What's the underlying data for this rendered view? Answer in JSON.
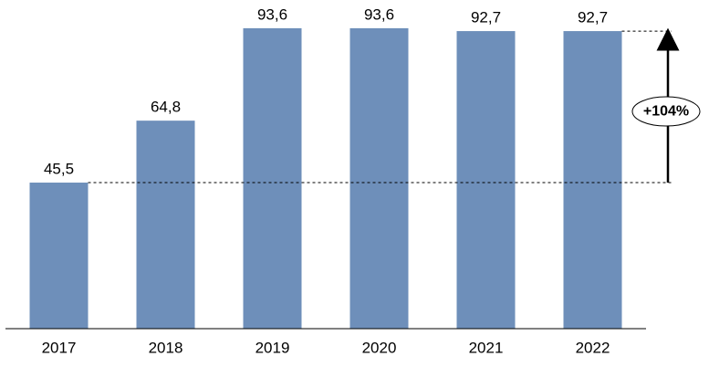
{
  "chart_data": {
    "type": "bar",
    "categories": [
      "2017",
      "2018",
      "2019",
      "2020",
      "2021",
      "2022"
    ],
    "values": [
      45.5,
      64.8,
      93.6,
      93.6,
      92.7,
      92.7
    ],
    "value_labels": [
      "45,5",
      "64,8",
      "93,6",
      "93,6",
      "92,7",
      "92,7"
    ],
    "color": "#6e8fba",
    "ylim": [
      0,
      100
    ],
    "annotation": "+104%"
  }
}
